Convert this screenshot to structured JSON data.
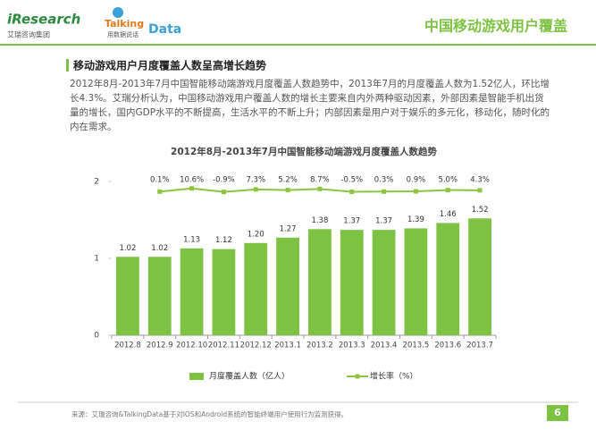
{
  "header": {
    "logo1": "iResearch",
    "logo1_sub": "艾瑞咨询集团",
    "logo2": "Talking",
    "logo2_data": "Data",
    "logo2_sub": "用数据说话",
    "title": "中国移动游戏用户覆盖"
  },
  "section_title": "移动游戏用户月度覆盖人数呈高增长趋势",
  "body": "2012年8月-2013年7月中国智能移动端游戏月度覆盖人数趋势中，2013年7月的月度覆盖人数为1.52亿人，环比增长4.3%。艾瑞分析认为，中国移动游戏用户覆盖人数的增长主要来自内外两种驱动因素，外部因素是智能手机出货量的增长，国内GDP水平的不断提高，生活水平的不断上升；内部因素是用户对于娱乐的多元化，移动化，随时化的内在需求。",
  "chart_data": {
    "type": "bar_line",
    "title": "2012年8月-2013年7月中国智能移动端游戏月度覆盖人数趋势",
    "categories": [
      "2012.8",
      "2012.9",
      "2012.10",
      "2012.11",
      "2012.12",
      "2013.1",
      "2013.2",
      "2013.3",
      "2013.4",
      "2013.5",
      "2013.6",
      "2013.7"
    ],
    "series": [
      {
        "name": "月度覆盖人数（亿人）",
        "color": "#7dc242",
        "type": "bar",
        "values": [
          1.02,
          1.02,
          1.13,
          1.12,
          1.2,
          1.27,
          1.38,
          1.37,
          1.37,
          1.39,
          1.46,
          1.52
        ],
        "value_labels": [
          "1.02",
          "1.02",
          "1.13",
          "1.12",
          "1.20",
          "1.27",
          "1.38",
          "1.37",
          "1.37",
          "1.39",
          "1.46",
          "1.52"
        ]
      },
      {
        "name": "增长率（%）",
        "color": "#8cc63f",
        "type": "line",
        "axis": "y2",
        "values": [
          null,
          0.1,
          10.6,
          -0.9,
          7.3,
          5.2,
          8.7,
          -0.5,
          0.3,
          0.9,
          5.0,
          4.3
        ],
        "value_labels": [
          null,
          "0.1%",
          "10.6%",
          "-0.9%",
          "7.3%",
          "5.2%",
          "8.7%",
          "-0.5%",
          "0.3%",
          "0.9%",
          "5.0%",
          "4.3%"
        ]
      }
    ],
    "ylim": [
      0,
      2
    ],
    "yticks": [
      0,
      1,
      2
    ],
    "y2lim": [
      -467,
      33
    ],
    "grid": false,
    "legend": "bottom"
  },
  "footer": {
    "source": "来源：艾瑞咨询&TalkingData基于对IOS和Android系统的智能终端用户使用行为监测获得。",
    "page": 6
  }
}
